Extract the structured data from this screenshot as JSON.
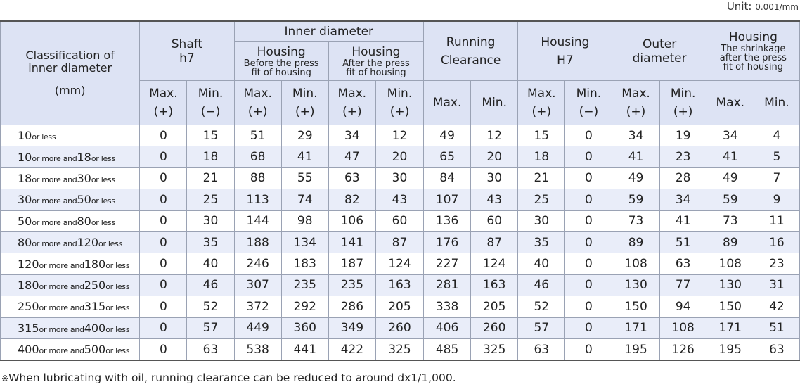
{
  "unit": {
    "label": "Unit",
    "sep": ":",
    "value": "0.001/mm"
  },
  "header": {
    "classification": {
      "line1": "Classification of",
      "line2": "inner diameter",
      "unit": "(mm)"
    },
    "shaft": {
      "line1": "Shaft",
      "line2": "h7"
    },
    "inner_diameter": "Inner diameter",
    "housing_before": {
      "title": "Housing",
      "line1": "Before the press",
      "line2": "fit of housing"
    },
    "housing_after": {
      "title": "Housing",
      "line1": "After the press",
      "line2": "fit of housing"
    },
    "running": {
      "line1": "Running",
      "line2": "Clearance"
    },
    "housing_h7": {
      "line1": "Housing",
      "line2": "H7"
    },
    "outer": {
      "line1": "Outer",
      "line2": "diameter"
    },
    "housing_shrink": {
      "title": "Housing",
      "line1": "The shrinkage",
      "line2": "after the press",
      "line3": "fit of housing"
    },
    "sub": {
      "c1": {
        "a": "Max.",
        "b": "(+)"
      },
      "c2": {
        "a": "Min.",
        "b": "(−)"
      },
      "c3": {
        "a": "Max.",
        "b": "(+)"
      },
      "c4": {
        "a": "Min.",
        "b": "(+)"
      },
      "c5": {
        "a": "Max.",
        "b": "(+)"
      },
      "c6": {
        "a": "Min.",
        "b": "(+)"
      },
      "c7": {
        "a": "Max."
      },
      "c8": {
        "a": "Min."
      },
      "c9": {
        "a": "Max.",
        "b": "(+)"
      },
      "c10": {
        "a": "Min.",
        "b": "(−)"
      },
      "c11": {
        "a": "Max.",
        "b": "(+)"
      },
      "c12": {
        "a": "Min.",
        "b": "(+)"
      },
      "c13": {
        "a": "Max."
      },
      "c14": {
        "a": "Min."
      }
    }
  },
  "rows": [
    {
      "cls": {
        "n1": "10",
        "s1": "or less"
      },
      "v": [
        "0",
        "15",
        "51",
        "29",
        "34",
        "12",
        "49",
        "12",
        "15",
        "0",
        "34",
        "19",
        "34",
        "4"
      ]
    },
    {
      "cls": {
        "n1": "10",
        "s1": "or more and",
        "n2": "18",
        "s2": "or less"
      },
      "v": [
        "0",
        "18",
        "68",
        "41",
        "47",
        "20",
        "65",
        "20",
        "18",
        "0",
        "41",
        "23",
        "41",
        "5"
      ]
    },
    {
      "cls": {
        "n1": "18",
        "s1": "or more and",
        "n2": "30",
        "s2": "or less"
      },
      "v": [
        "0",
        "21",
        "88",
        "55",
        "63",
        "30",
        "84",
        "30",
        "21",
        "0",
        "49",
        "28",
        "49",
        "7"
      ]
    },
    {
      "cls": {
        "n1": "30",
        "s1": "or more and",
        "n2": "50",
        "s2": "or less"
      },
      "v": [
        "0",
        "25",
        "113",
        "74",
        "82",
        "43",
        "107",
        "43",
        "25",
        "0",
        "59",
        "34",
        "59",
        "9"
      ]
    },
    {
      "cls": {
        "n1": "50",
        "s1": "or more and",
        "n2": "80",
        "s2": "or less"
      },
      "v": [
        "0",
        "30",
        "144",
        "98",
        "106",
        "60",
        "136",
        "60",
        "30",
        "0",
        "73",
        "41",
        "73",
        "11"
      ]
    },
    {
      "cls": {
        "n1": "80",
        "s1": "or more and",
        "n2": "120",
        "s2": "or less"
      },
      "v": [
        "0",
        "35",
        "188",
        "134",
        "141",
        "87",
        "176",
        "87",
        "35",
        "0",
        "89",
        "51",
        "89",
        "16"
      ]
    },
    {
      "cls": {
        "n1": "120",
        "s1": "or more and",
        "n2": "180",
        "s2": "or less"
      },
      "v": [
        "0",
        "40",
        "246",
        "183",
        "187",
        "124",
        "227",
        "124",
        "40",
        "0",
        "108",
        "63",
        "108",
        "23"
      ]
    },
    {
      "cls": {
        "n1": "180",
        "s1": "or more and",
        "n2": "250",
        "s2": "or less"
      },
      "v": [
        "0",
        "46",
        "307",
        "235",
        "235",
        "163",
        "281",
        "163",
        "46",
        "0",
        "130",
        "77",
        "130",
        "31"
      ]
    },
    {
      "cls": {
        "n1": "250",
        "s1": "or more and",
        "n2": "315",
        "s2": "or less"
      },
      "v": [
        "0",
        "52",
        "372",
        "292",
        "286",
        "205",
        "338",
        "205",
        "52",
        "0",
        "150",
        "94",
        "150",
        "42"
      ]
    },
    {
      "cls": {
        "n1": "315",
        "s1": "or more and",
        "n2": "400",
        "s2": "or less"
      },
      "v": [
        "0",
        "57",
        "449",
        "360",
        "349",
        "260",
        "406",
        "260",
        "57",
        "0",
        "171",
        "108",
        "171",
        "51"
      ]
    },
    {
      "cls": {
        "n1": "400",
        "s1": "or more and",
        "n2": "500",
        "s2": "or less"
      },
      "v": [
        "0",
        "63",
        "538",
        "441",
        "422",
        "325",
        "485",
        "325",
        "63",
        "0",
        "195",
        "126",
        "195",
        "63"
      ]
    }
  ],
  "note": {
    "mark": "※",
    "text": "When lubricating with oil, running clearance can be reduced to around dx1/1,000."
  }
}
